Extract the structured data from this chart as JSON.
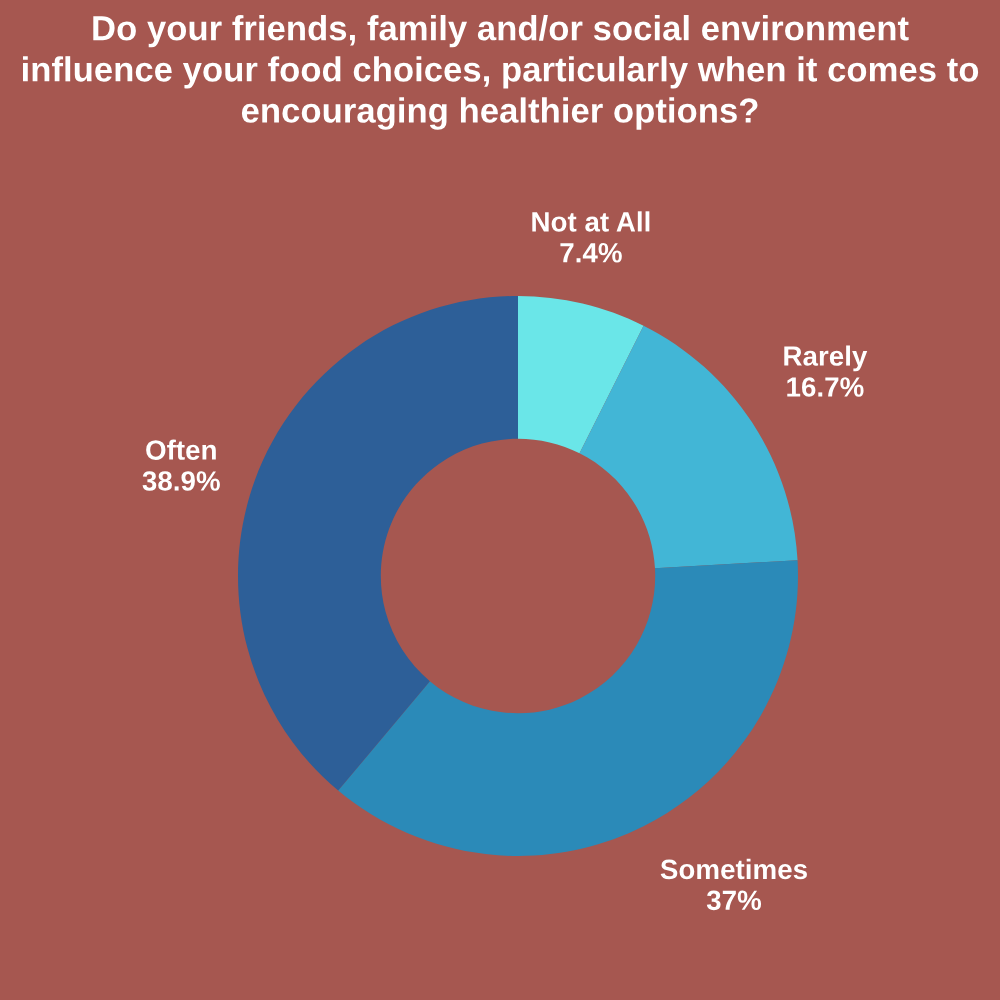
{
  "chart_data": {
    "type": "donut",
    "title": "Do your friends, family and/or social environment\ninfluence your food choices, particularly when it comes to\nencouraging healthier options?",
    "categories": [
      "Not at All",
      "Rarely",
      "Sometimes",
      "Often"
    ],
    "values": [
      7.4,
      16.7,
      37,
      38.9
    ],
    "value_labels": [
      "7.4%",
      "16.7%",
      "37%",
      "38.9%"
    ],
    "colors": [
      "#6ae6e8",
      "#42b6d6",
      "#2b8ab8",
      "#2d5f98"
    ],
    "legend": false
  }
}
